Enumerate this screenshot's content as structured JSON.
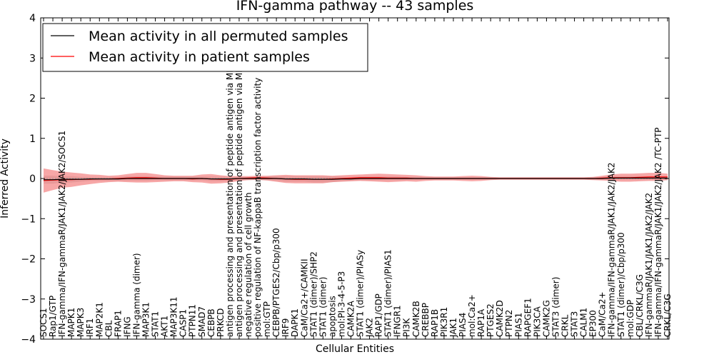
{
  "chart_data": {
    "type": "line",
    "title": "IFN-gamma pathway -- 43 samples",
    "xlabel": "Cellular Entities",
    "ylabel": "Inferred Activity",
    "ylim": [
      -4,
      4
    ],
    "yticks": [
      "4",
      "3",
      "2",
      "1",
      "0",
      "−1",
      "−2",
      "−3",
      "−4"
    ],
    "grid": false,
    "legend_position": "top-left",
    "series": [
      {
        "name": "Mean activity in all permuted samples",
        "color": "#000000"
      },
      {
        "name": "Mean activity in patient samples",
        "color": "#ff0000"
      }
    ],
    "categories": [
      "SOCS1",
      "Rap1/GTP",
      "IFN-gamma/IFN-gammaR/JAK1/JAK2/JAK2/SOCS1",
      "MAPK1",
      "MAPK3",
      "IRF1",
      "MAP2K1",
      "CBL",
      "FRAP1",
      "IFNG",
      "IFN-gamma (dimer)",
      "MAP3K1",
      "STAT1",
      "AKT1",
      "MAP3K11",
      "CASP1",
      "PTPN11",
      "SMAD7",
      "CEBPB",
      "PRKCD",
      "antigen processing and presentation of peptide antigen via MHC class I",
      "antigen processing and presentation of peptide antigen via MHC class II",
      "negative regulation of cell growth",
      "positive regulation of NF-kappaB transcription factor activity",
      "mol:GTP",
      "CEBPB/PTGES2/Cbp/p300",
      "IRF9",
      "DAPK1",
      "CaM/Ca2+/CAMKII",
      "STAT1 (dimer)/SHP2",
      "STAT1 (dimer)",
      "apoptosis",
      "mol:PI-3-4-5-P3",
      "CAMK2A",
      "STAT1 (dimer)/PIASy",
      "JAK2",
      "RAP1/GDP",
      "STAT1 (dimer)/PIAS1",
      "IFNGR1",
      "PI3K",
      "CAMK2B",
      "CREBBP",
      "RAP1B",
      "PIK3R1",
      "JAK1",
      "PIAS4",
      "mol:Ca2+",
      "RAP1A",
      "PTGES2",
      "CAMK2D",
      "PTPN2",
      "PIAS1",
      "RAPGEF1",
      "PIK3CA",
      "CAMK2G",
      "STAT3 (dimer)",
      "CRKL",
      "STAT3",
      "CALM1",
      "EP300",
      "CaM/Ca2+",
      "IFN-gamma/IFN-gammaR/JAK1/JAK2/JAK2",
      "STAT1 (dimer)/Cbp/p300",
      "mol:GDP",
      "CBL/CRKL/C3G",
      "IFN-gammaR/JAK1/JAK1/JAK2/JAK2",
      "IFN-gamma/IFN-gammaR/JAK1/JAK2/JAK2 /TC-PTP",
      "CRKL/C3G"
    ],
    "patient_mean": [
      -0.05,
      -0.04,
      -0.03,
      -0.03,
      -0.02,
      -0.02,
      -0.01,
      -0.01,
      0.0,
      0.01,
      0.02,
      0.02,
      0.01,
      0.0,
      0.0,
      0.0,
      -0.01,
      0.0,
      -0.01,
      -0.02,
      -0.02,
      0.0,
      0.01,
      0.02,
      0.01,
      0.0,
      -0.01,
      -0.02,
      -0.02,
      -0.02,
      -0.02,
      -0.01,
      0.0,
      0.01,
      0.02,
      0.02,
      0.02,
      0.01,
      0.01,
      0.01,
      0.0,
      0.0,
      0.0,
      0.0,
      0.0,
      0.0,
      0.0,
      0.0,
      0.0,
      0.0,
      0.0,
      0.0,
      0.0,
      0.0,
      0.0,
      0.0,
      0.0,
      0.0,
      0.0,
      0.0,
      0.01,
      0.02,
      0.02,
      0.02,
      0.03,
      0.04,
      0.04,
      0.04
    ],
    "patient_band": [
      0.3,
      0.25,
      0.2,
      0.18,
      0.15,
      0.12,
      0.1,
      0.08,
      0.08,
      0.1,
      0.12,
      0.12,
      0.1,
      0.08,
      0.07,
      0.07,
      0.08,
      0.1,
      0.12,
      0.1,
      0.08,
      0.06,
      0.05,
      0.05,
      0.06,
      0.08,
      0.1,
      0.1,
      0.1,
      0.1,
      0.1,
      0.08,
      0.08,
      0.08,
      0.08,
      0.09,
      0.1,
      0.1,
      0.09,
      0.08,
      0.08,
      0.06,
      0.05,
      0.05,
      0.05,
      0.06,
      0.07,
      0.06,
      0.04,
      0.03,
      0.03,
      0.03,
      0.03,
      0.03,
      0.03,
      0.03,
      0.03,
      0.03,
      0.03,
      0.04,
      0.06,
      0.08,
      0.1,
      0.1,
      0.1,
      0.1,
      0.1,
      0.08
    ],
    "permuted_mean": [
      -0.03,
      -0.03,
      -0.02,
      -0.02,
      -0.02,
      -0.01,
      -0.01,
      -0.01,
      -0.01,
      0.0,
      0.0,
      0.0,
      0.0,
      0.0,
      0.0,
      0.0,
      0.0,
      0.0,
      -0.01,
      -0.01,
      -0.01,
      0.0,
      0.0,
      0.0,
      0.0,
      0.0,
      -0.01,
      -0.01,
      -0.01,
      -0.02,
      -0.02,
      -0.02,
      -0.01,
      -0.01,
      0.0,
      0.0,
      0.0,
      0.0,
      0.0,
      0.0,
      0.0,
      0.0,
      0.0,
      0.0,
      0.0,
      0.0,
      0.0,
      0.0,
      0.0,
      0.0,
      0.0,
      0.0,
      0.0,
      0.0,
      0.0,
      0.0,
      0.0,
      0.0,
      0.0,
      0.0,
      0.0,
      0.01,
      0.01,
      0.01,
      0.01,
      0.01,
      0.01,
      0.01
    ],
    "permuted_band": [
      0.1,
      0.1,
      0.08,
      0.08,
      0.06,
      0.05,
      0.05,
      0.05,
      0.05,
      0.06,
      0.06,
      0.06,
      0.05,
      0.05,
      0.05,
      0.05,
      0.05,
      0.05,
      0.06,
      0.06,
      0.05,
      0.04,
      0.04,
      0.04,
      0.05,
      0.06,
      0.07,
      0.07,
      0.07,
      0.08,
      0.08,
      0.07,
      0.06,
      0.05,
      0.05,
      0.05,
      0.05,
      0.05,
      0.05,
      0.04,
      0.04,
      0.03,
      0.03,
      0.03,
      0.03,
      0.03,
      0.03,
      0.03,
      0.03,
      0.02,
      0.02,
      0.02,
      0.02,
      0.02,
      0.02,
      0.02,
      0.02,
      0.02,
      0.02,
      0.03,
      0.04,
      0.05,
      0.05,
      0.05,
      0.05,
      0.05,
      0.05,
      0.05
    ]
  }
}
